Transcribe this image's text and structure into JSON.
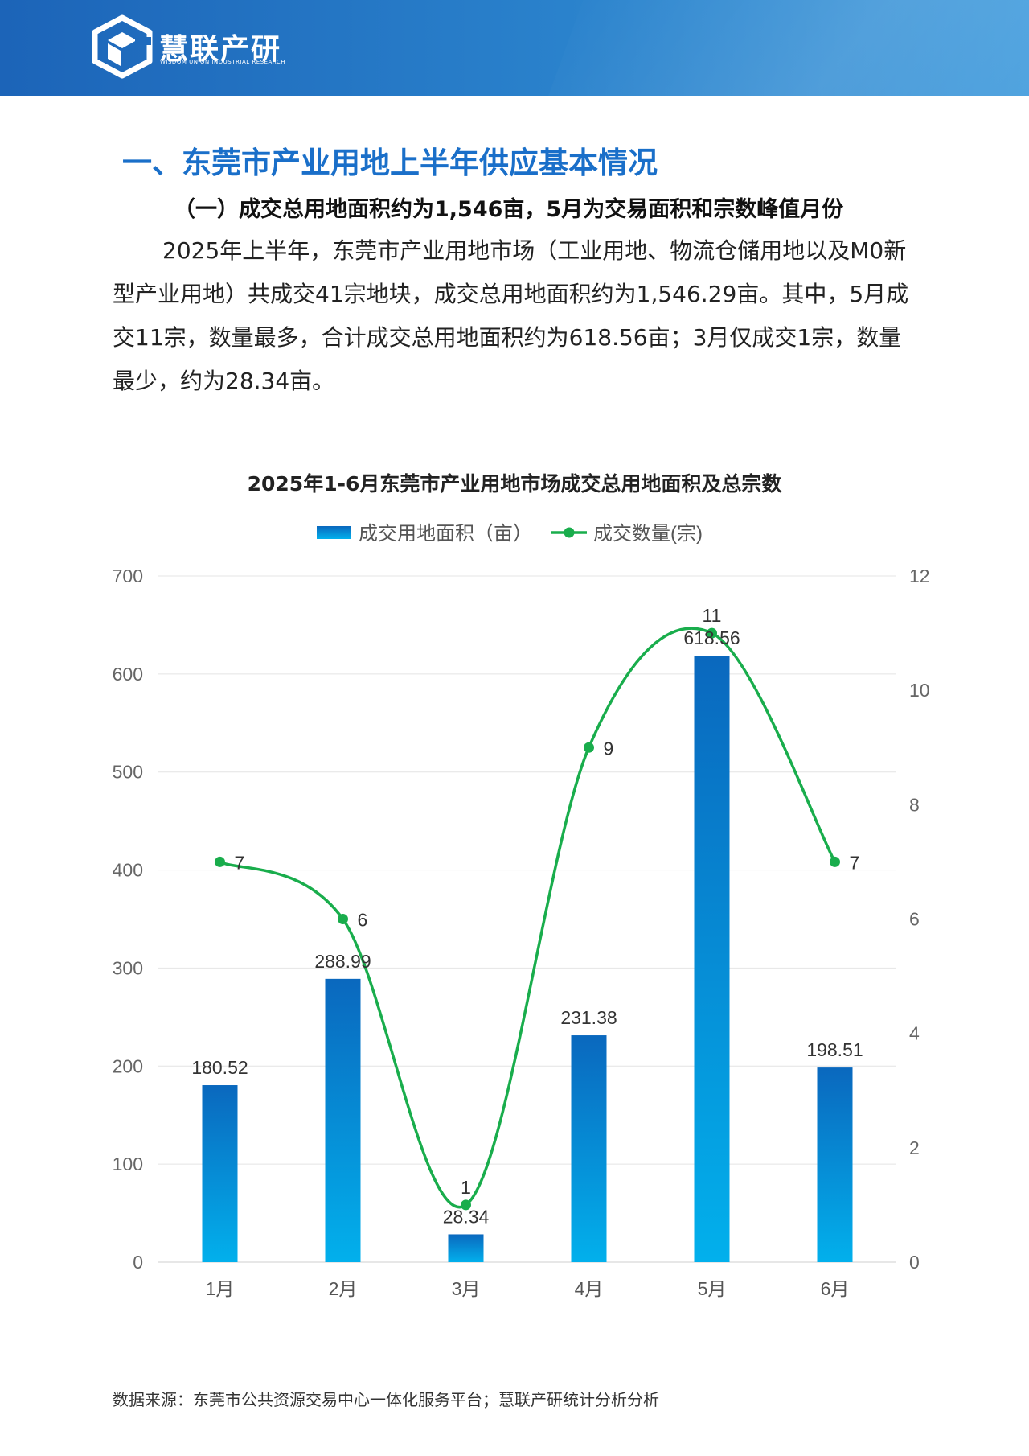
{
  "header": {
    "brand_name": "慧联产研",
    "brand_sub": "WISDOM UNION INDUSTRIAL RESEARCH",
    "accent": "#1c64b8"
  },
  "section_title": "一、东莞市产业用地上半年供应基本情况",
  "sub_title": "（一）成交总用地面积约为1,546亩，5月为交易面积和宗数峰值月份",
  "paragraph": "2025年上半年，东莞市产业用地市场（工业用地、物流仓储用地以及M0新型产业用地）共成交41宗地块，成交总用地面积约为1,546.29亩。其中，5月成交11宗，数量最多，合计成交总用地面积约为618.56亩；3月仅成交1宗，数量最少，约为28.34亩。",
  "source": "数据来源：东莞市公共资源交易中心一体化服务平台；慧联产研统计分析分析",
  "chart_data": {
    "type": "bar",
    "title": "2025年1-6月东莞市产业用地市场成交总用地面积及总宗数",
    "categories": [
      "1月",
      "2月",
      "3月",
      "4月",
      "5月",
      "6月"
    ],
    "series": [
      {
        "name": "成交用地面积（亩）",
        "type": "bar",
        "axis": "left",
        "values": [
          180.52,
          288.99,
          28.34,
          231.38,
          618.56,
          198.51
        ],
        "labels": [
          "180.52",
          "288.99",
          "28.34",
          "231.38",
          "618.56",
          "198.51"
        ],
        "color": "#0a72c4"
      },
      {
        "name": "成交数量(宗)",
        "type": "line",
        "smooth": true,
        "axis": "right",
        "values": [
          7,
          6,
          1,
          9,
          11,
          7
        ],
        "labels": [
          "7",
          "6",
          "1",
          "9",
          "11",
          "7"
        ],
        "color": "#19ad4c"
      }
    ],
    "y_left": {
      "min": 0,
      "max": 700,
      "ticks": [
        "0",
        "100",
        "200",
        "300",
        "400",
        "500",
        "600",
        "700"
      ]
    },
    "y_right": {
      "min": 0,
      "max": 12,
      "ticks": [
        "0",
        "2",
        "4",
        "6",
        "8",
        "10",
        "12"
      ]
    },
    "grid": true,
    "legend": "top-center"
  }
}
